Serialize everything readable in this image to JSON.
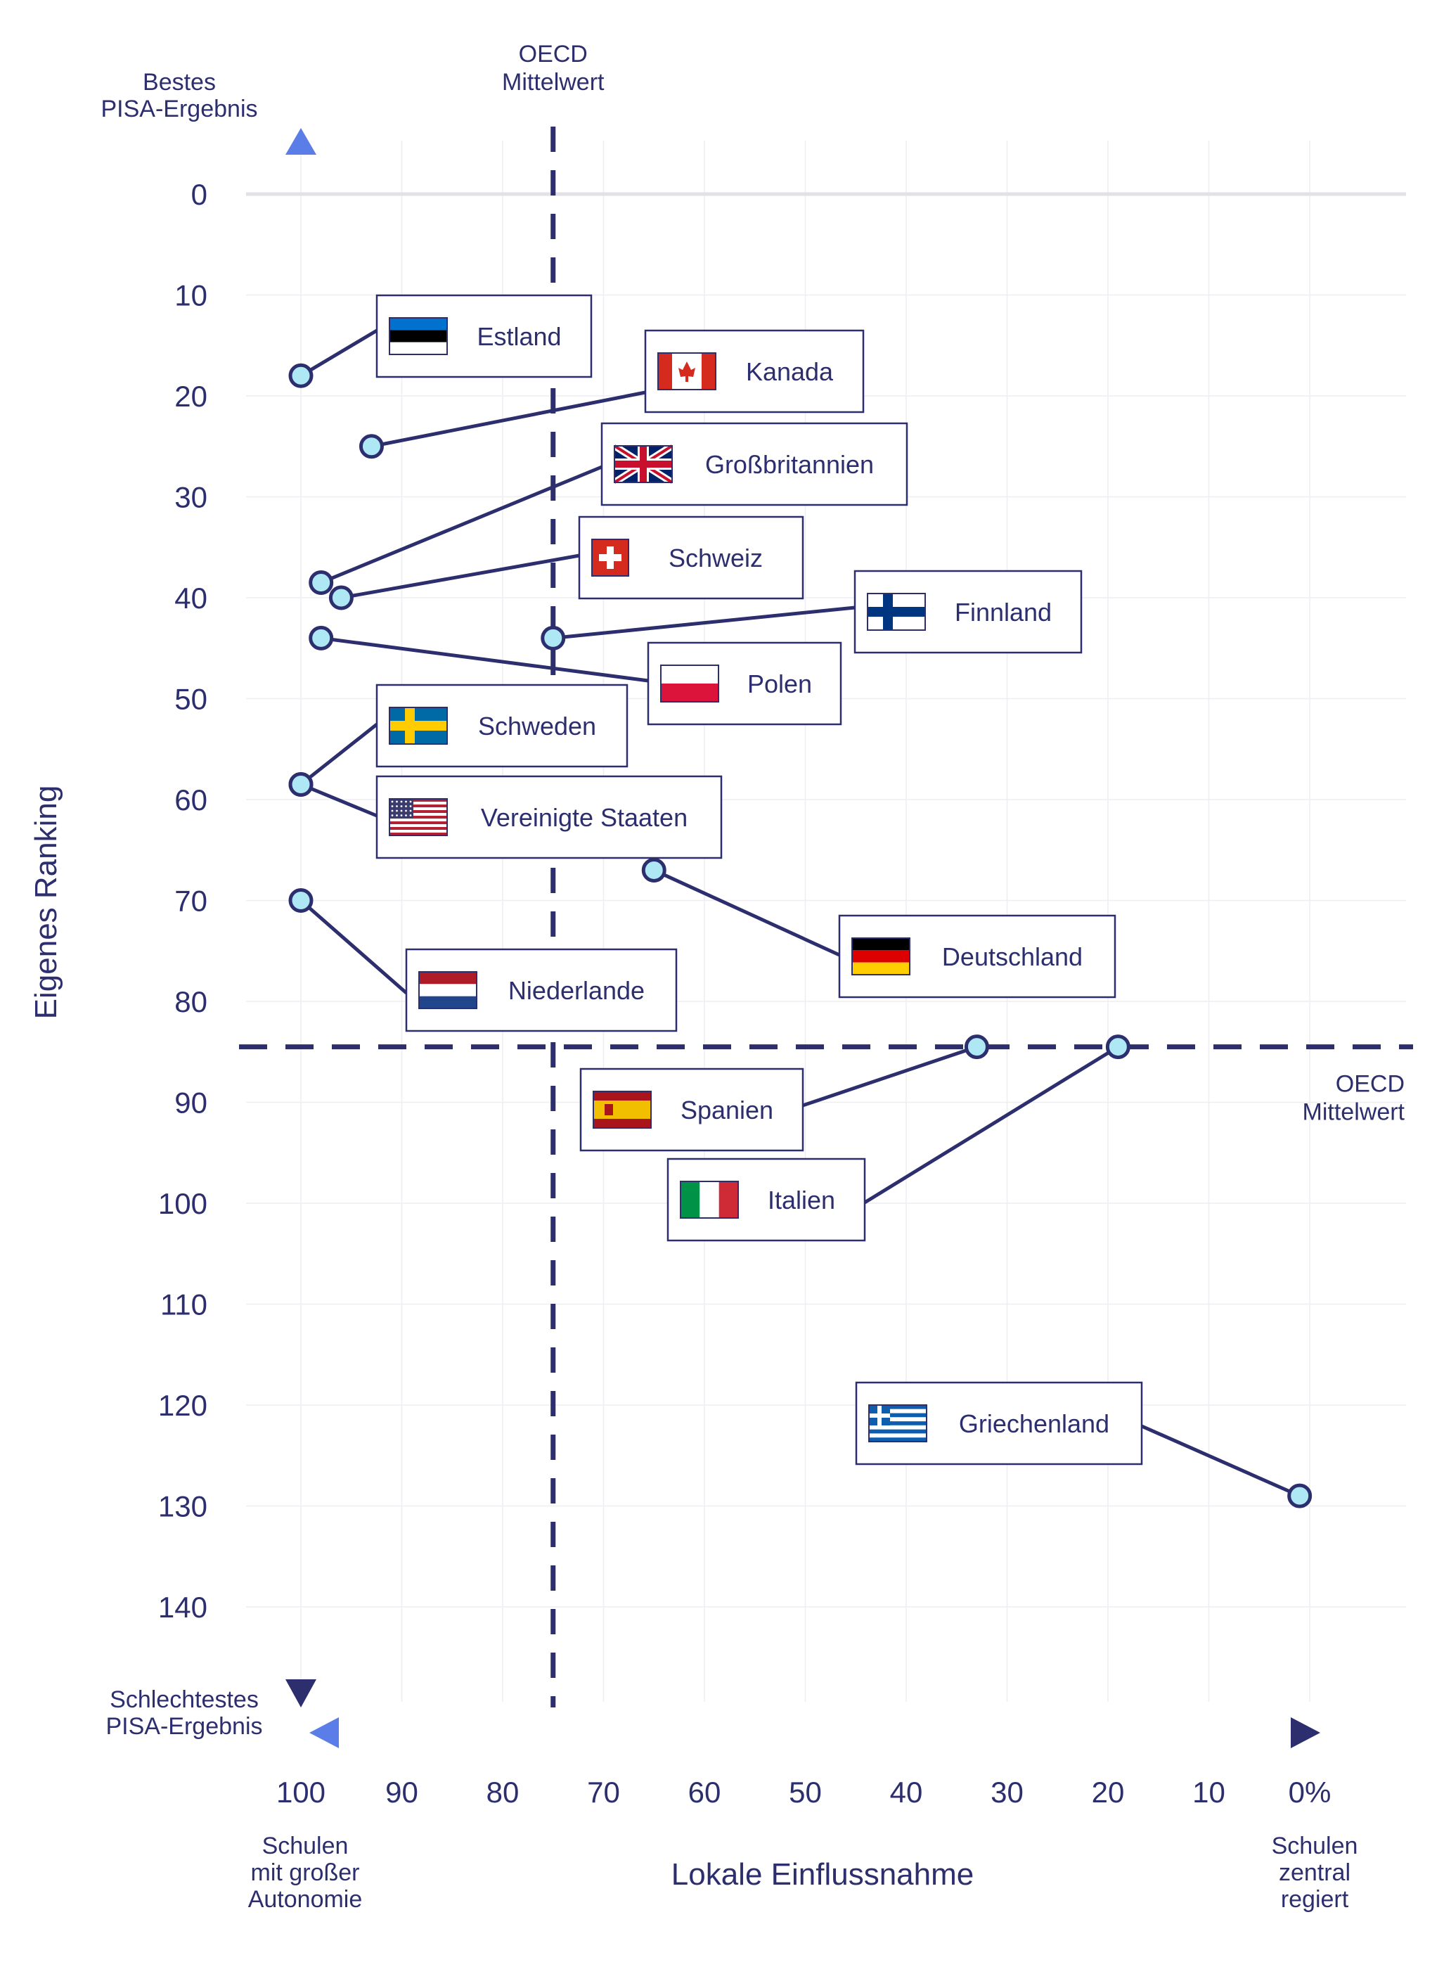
{
  "chart_data": {
    "type": "scatter",
    "xlabel": "Lokale Einflussnahme",
    "ylabel": "Eigenes Ranking",
    "xlim": [
      100,
      0
    ],
    "ylim": [
      0,
      147
    ],
    "x_ticks": [
      100,
      90,
      80,
      70,
      60,
      50,
      40,
      30,
      20,
      10,
      0
    ],
    "x_tick_labels": [
      "100",
      "90",
      "80",
      "70",
      "60",
      "50",
      "40",
      "30",
      "20",
      "10",
      "0%"
    ],
    "y_ticks": [
      0,
      10,
      20,
      30,
      40,
      50,
      60,
      70,
      80,
      90,
      100,
      110,
      120,
      130,
      140
    ],
    "y_tick_labels": [
      "0",
      "10",
      "20",
      "30",
      "40",
      "50",
      "60",
      "70",
      "80",
      "90",
      "100",
      "110",
      "120",
      "130",
      "140"
    ],
    "grid": true,
    "y_top_label": [
      "Bestes",
      "PISA-Ergebnis"
    ],
    "y_bottom_label": [
      "Schlechtestes",
      "PISA-Ergebnis"
    ],
    "x_left_label": [
      "Schulen",
      "mit großer",
      "Autonomie"
    ],
    "x_right_label": [
      "Schulen",
      "zentral",
      "regiert"
    ],
    "reference_lines": [
      {
        "axis": "x",
        "value": 75,
        "label": [
          "OECD",
          "Mittelwert"
        ]
      },
      {
        "axis": "y",
        "value": 84.5,
        "label": [
          "OECD",
          "Mittelwert"
        ]
      }
    ],
    "points": [
      {
        "name": "Estland",
        "flag": "flag-estonia",
        "x": 100,
        "y": 18
      },
      {
        "name": "Kanada",
        "flag": "flag-canada",
        "x": 93,
        "y": 25
      },
      {
        "name": "Großbritannien",
        "flag": "flag-uk",
        "x": 98,
        "y": 38.5
      },
      {
        "name": "Schweiz",
        "flag": "flag-switzerland",
        "x": 96,
        "y": 40
      },
      {
        "name": "Finnland",
        "flag": "flag-finland",
        "x": 75,
        "y": 44
      },
      {
        "name": "Polen",
        "flag": "flag-poland",
        "x": 98,
        "y": 44
      },
      {
        "name": "Schweden",
        "flag": "flag-sweden",
        "x": 100,
        "y": 58.5
      },
      {
        "name": "Vereinigte Staaten",
        "flag": "flag-usa",
        "x": 100,
        "y": 58.5
      },
      {
        "name": "Niederlande",
        "flag": "flag-netherlands",
        "x": 100,
        "y": 70
      },
      {
        "name": "Deutschland",
        "flag": "flag-germany",
        "x": 65,
        "y": 67
      },
      {
        "name": "Spanien",
        "flag": "flag-spain",
        "x": 33,
        "y": 84.5
      },
      {
        "name": "Italien",
        "flag": "flag-italy",
        "x": 19,
        "y": 84.5
      },
      {
        "name": "Griechenland",
        "flag": "flag-greece",
        "x": 1,
        "y": 129
      }
    ]
  }
}
